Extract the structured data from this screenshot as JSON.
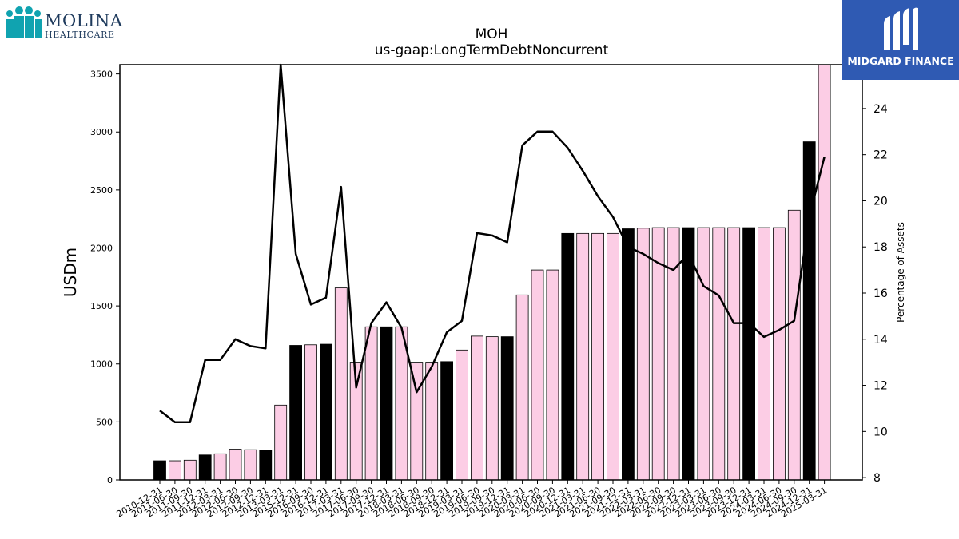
{
  "logos": {
    "left": {
      "name": "MOLINA",
      "sub": "HEALTHCARE",
      "icon": "molina-people-icon",
      "color": "#10a3b0"
    },
    "right": {
      "name": "MIDGARD FINANCE",
      "icon": "midgard-m-icon",
      "background": "#2f5ab3"
    }
  },
  "chart_data": {
    "type": "bar",
    "title": "MOH",
    "subtitle": "us-gaap:LongTermDebtNoncurrent",
    "ylabel": "USDm",
    "y2label": "Percentage of Assets",
    "ylim": [
      0,
      3580
    ],
    "y2lim": [
      7.9,
      25.9
    ],
    "yticks": [
      0,
      500,
      1000,
      1500,
      2000,
      2500,
      3000,
      3500
    ],
    "y2ticks": [
      8,
      10,
      12,
      14,
      16,
      18,
      20,
      22,
      24
    ],
    "grid": false,
    "categories": [
      "2010-12-31",
      "2011-06-30",
      "2011-09-30",
      "2011-12-31",
      "2012-03-31",
      "2012-06-30",
      "2012-09-30",
      "2012-12-31",
      "2013-03-31",
      "2015-12-31",
      "2016-09-30",
      "2016-12-31",
      "2017-03-31",
      "2017-06-30",
      "2017-09-30",
      "2017-12-31",
      "2018-03-31",
      "2018-06-30",
      "2018-09-30",
      "2018-12-31",
      "2019-03-31",
      "2019-06-30",
      "2019-09-30",
      "2019-12-31",
      "2020-03-31",
      "2020-06-30",
      "2020-09-30",
      "2020-12-31",
      "2021-03-31",
      "2021-06-30",
      "2021-09-30",
      "2021-12-31",
      "2022-03-31",
      "2022-06-30",
      "2022-09-30",
      "2022-12-31",
      "2023-03-31",
      "2023-06-30",
      "2023-09-30",
      "2023-12-31",
      "2024-03-31",
      "2024-06-30",
      "2024-09-30",
      "2024-12-31",
      "2025-03-31"
    ],
    "series": [
      {
        "type": "bar",
        "values": [
          165,
          165,
          170,
          215,
          225,
          265,
          260,
          255,
          645,
          1160,
          1165,
          1170,
          1655,
          1015,
          1320,
          1320,
          1320,
          1015,
          1015,
          1020,
          1120,
          1240,
          1235,
          1235,
          1595,
          1810,
          1810,
          2125,
          2125,
          2125,
          2125,
          2165,
          2170,
          2175,
          2175,
          2175,
          2175,
          2175,
          2175,
          2175,
          2175,
          2175,
          2325,
          2915,
          3580
        ],
        "colors": [
          "#000000",
          "#fccde5",
          "#fccde5",
          "#000000",
          "#fccde5",
          "#fccde5",
          "#fccde5",
          "#000000",
          "#fccde5",
          "#000000",
          "#fccde5",
          "#000000",
          "#fccde5",
          "#fccde5",
          "#fccde5",
          "#000000",
          "#fccde5",
          "#fccde5",
          "#fccde5",
          "#000000",
          "#fccde5",
          "#fccde5",
          "#fccde5",
          "#000000",
          "#fccde5",
          "#fccde5",
          "#fccde5",
          "#000000",
          "#fccde5",
          "#fccde5",
          "#fccde5",
          "#000000",
          "#fccde5",
          "#fccde5",
          "#fccde5",
          "#000000",
          "#fccde5",
          "#fccde5",
          "#fccde5",
          "#000000",
          "#fccde5",
          "#fccde5",
          "#fccde5",
          "#000000",
          "#fccde5"
        ]
      },
      {
        "type": "line",
        "axis": "right",
        "color": "#000000",
        "values": [
          10.9,
          10.4,
          10.4,
          13.1,
          13.1,
          14.0,
          13.7,
          13.6,
          25.9,
          17.7,
          15.5,
          15.8,
          20.6,
          11.9,
          14.7,
          15.6,
          14.5,
          11.7,
          12.8,
          14.3,
          14.8,
          18.6,
          18.5,
          18.2,
          22.4,
          23.0,
          23.0,
          22.3,
          21.3,
          20.2,
          19.3,
          18.0,
          17.7,
          17.3,
          17.0,
          17.7,
          16.3,
          15.9,
          14.7,
          14.7,
          14.1,
          14.4,
          14.8,
          19.3,
          21.9
        ]
      }
    ]
  }
}
